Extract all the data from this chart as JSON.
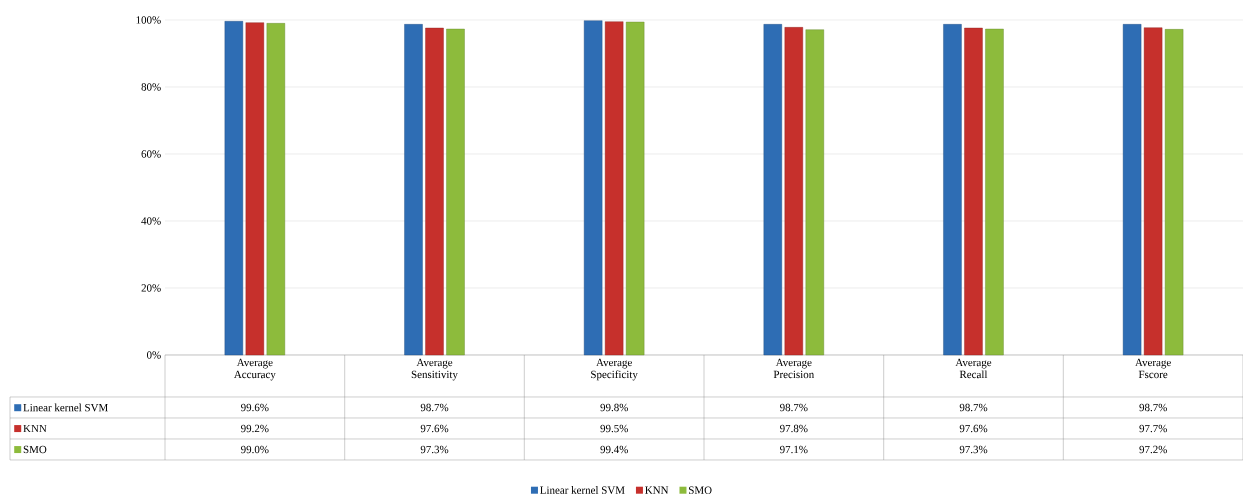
{
  "chart_data": {
    "type": "bar",
    "categories": [
      "Average Accuracy",
      "Average Sensitivity",
      "Average Specificity",
      "Average Precision",
      "Average Recall",
      "Average Fscore"
    ],
    "series": [
      {
        "name": "Linear kernel SVM",
        "color": "#2e6db4",
        "values": [
          99.6,
          98.7,
          99.8,
          98.7,
          98.7,
          98.7
        ],
        "value_labels": [
          "99.6%",
          "98.7%",
          "99.8%",
          "98.7%",
          "98.7%",
          "98.7%"
        ]
      },
      {
        "name": "KNN",
        "color": "#c6302c",
        "values": [
          99.2,
          97.6,
          99.5,
          97.8,
          97.6,
          97.7
        ],
        "value_labels": [
          "99.2%",
          "97.6%",
          "99.5%",
          "97.8%",
          "97.6%",
          "97.7%"
        ]
      },
      {
        "name": "SMO",
        "color": "#8dbb3c",
        "values": [
          99.0,
          97.3,
          99.4,
          97.1,
          97.3,
          97.2
        ],
        "value_labels": [
          "99.0%",
          "97.3%",
          "99.4%",
          "97.1%",
          "97.3%",
          "97.2%"
        ]
      }
    ],
    "ylim": [
      0,
      100
    ],
    "yticks": [
      {
        "value": 0,
        "label": "0%"
      },
      {
        "value": 20,
        "label": "20%"
      },
      {
        "value": 40,
        "label": "40%"
      },
      {
        "value": 60,
        "label": "60%"
      },
      {
        "value": 80,
        "label": "80%"
      },
      {
        "value": 100,
        "label": "100%"
      }
    ],
    "grid": "y",
    "legend": "bottom"
  }
}
